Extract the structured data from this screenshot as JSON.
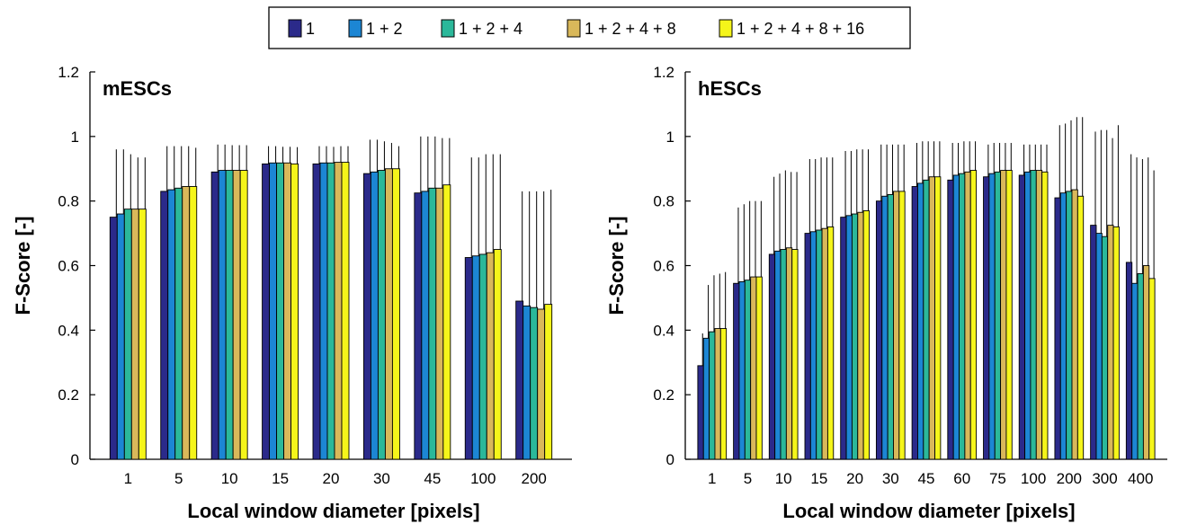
{
  "legend": {
    "placement": "top-center",
    "entries": [
      {
        "label": "1",
        "color": "#2b2a8a"
      },
      {
        "label": "1 + 2",
        "color": "#1c86d4"
      },
      {
        "label": "1 + 2 + 4",
        "color": "#2bb89a"
      },
      {
        "label": "1 + 2 + 4 + 8",
        "color": "#d9b85a"
      },
      {
        "label": "1 + 2 + 4 + 8 + 16",
        "color": "#f5f51a"
      }
    ]
  },
  "chart_data": [
    {
      "type": "bar",
      "title": "mESCs",
      "xlabel": "Local window diameter [pixels]",
      "ylabel": "F-Score [-]",
      "ylim": [
        0,
        1.2
      ],
      "yticks": [
        "0",
        "0.2",
        "0.4",
        "0.6",
        "0.8",
        "1",
        "1.2"
      ],
      "grid": false,
      "error_bars": true,
      "categories": [
        "1",
        "5",
        "10",
        "15",
        "20",
        "30",
        "45",
        "100",
        "200"
      ],
      "series": [
        {
          "name": "1",
          "values": [
            0.75,
            0.83,
            0.89,
            0.915,
            0.915,
            0.885,
            0.825,
            0.625,
            0.49
          ],
          "errors": [
            0.21,
            0.14,
            0.085,
            0.055,
            0.055,
            0.105,
            0.175,
            0.31,
            0.34
          ]
        },
        {
          "name": "1 + 2",
          "values": [
            0.76,
            0.835,
            0.895,
            0.918,
            0.918,
            0.89,
            0.83,
            0.63,
            0.475
          ],
          "errors": [
            0.2,
            0.135,
            0.08,
            0.052,
            0.052,
            0.1,
            0.17,
            0.305,
            0.355
          ]
        },
        {
          "name": "1 + 2 + 4",
          "values": [
            0.775,
            0.84,
            0.895,
            0.918,
            0.918,
            0.895,
            0.84,
            0.635,
            0.47
          ],
          "errors": [
            0.17,
            0.13,
            0.078,
            0.05,
            0.05,
            0.09,
            0.16,
            0.31,
            0.36
          ]
        },
        {
          "name": "1 + 2 + 4 + 8",
          "values": [
            0.775,
            0.845,
            0.895,
            0.918,
            0.92,
            0.9,
            0.84,
            0.64,
            0.465
          ],
          "errors": [
            0.16,
            0.125,
            0.078,
            0.05,
            0.05,
            0.08,
            0.155,
            0.305,
            0.365
          ]
        },
        {
          "name": "1 + 2 + 4 + 8 + 16",
          "values": [
            0.775,
            0.845,
            0.895,
            0.915,
            0.92,
            0.9,
            0.85,
            0.65,
            0.48
          ],
          "errors": [
            0.16,
            0.12,
            0.078,
            0.052,
            0.05,
            0.07,
            0.145,
            0.295,
            0.355
          ]
        }
      ]
    },
    {
      "type": "bar",
      "title": "hESCs",
      "xlabel": "Local window diameter [pixels]",
      "ylabel": "F-Score [-]",
      "ylim": [
        0,
        1.2
      ],
      "yticks": [
        "0",
        "0.2",
        "0.4",
        "0.6",
        "0.8",
        "1",
        "1.2"
      ],
      "grid": false,
      "error_bars": true,
      "categories": [
        "1",
        "5",
        "10",
        "15",
        "20",
        "30",
        "45",
        "60",
        "75",
        "100",
        "200",
        "300",
        "400"
      ],
      "series": [
        {
          "name": "1",
          "values": [
            0.29,
            0.545,
            0.635,
            0.7,
            0.75,
            0.8,
            0.845,
            0.865,
            0.875,
            0.88,
            0.81,
            0.725,
            0.61
          ],
          "errors": [
            0.1,
            0.235,
            0.24,
            0.23,
            0.205,
            0.175,
            0.135,
            0.115,
            0.1,
            0.095,
            0.225,
            0.29,
            0.335
          ]
        },
        {
          "name": "1 + 2",
          "values": [
            0.375,
            0.55,
            0.645,
            0.705,
            0.755,
            0.815,
            0.855,
            0.88,
            0.885,
            0.89,
            0.825,
            0.7,
            0.545
          ],
          "errors": [
            0.165,
            0.24,
            0.24,
            0.225,
            0.2,
            0.16,
            0.13,
            0.1,
            0.095,
            0.085,
            0.215,
            0.32,
            0.39
          ]
        },
        {
          "name": "1 + 2 + 4",
          "values": [
            0.395,
            0.555,
            0.65,
            0.71,
            0.76,
            0.82,
            0.865,
            0.885,
            0.89,
            0.895,
            0.83,
            0.69,
            0.575
          ],
          "errors": [
            0.175,
            0.245,
            0.245,
            0.225,
            0.2,
            0.155,
            0.12,
            0.1,
            0.09,
            0.08,
            0.22,
            0.33,
            0.355
          ]
        },
        {
          "name": "1 + 2 + 4 + 8",
          "values": [
            0.405,
            0.565,
            0.655,
            0.715,
            0.765,
            0.83,
            0.875,
            0.89,
            0.895,
            0.895,
            0.835,
            0.725,
            0.6
          ],
          "errors": [
            0.17,
            0.235,
            0.235,
            0.22,
            0.195,
            0.145,
            0.11,
            0.095,
            0.085,
            0.08,
            0.225,
            0.27,
            0.335
          ]
        },
        {
          "name": "1 + 2 + 4 + 8 + 16",
          "values": [
            0.405,
            0.565,
            0.65,
            0.72,
            0.77,
            0.83,
            0.875,
            0.895,
            0.895,
            0.89,
            0.815,
            0.72,
            0.56
          ],
          "errors": [
            0.175,
            0.235,
            0.24,
            0.215,
            0.19,
            0.145,
            0.11,
            0.09,
            0.085,
            0.085,
            0.245,
            0.315,
            0.335
          ]
        }
      ]
    }
  ]
}
